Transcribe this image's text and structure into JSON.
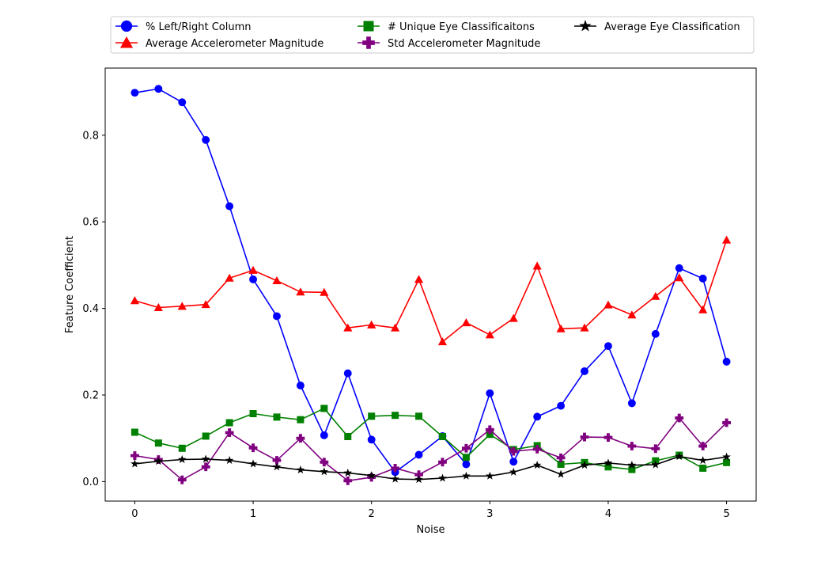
{
  "chart_data": {
    "type": "line",
    "xlabel": "Noise",
    "ylabel": "Feature Coefficient",
    "xlim": [
      -0.25,
      5.25
    ],
    "ylim": [
      -0.045,
      0.955
    ],
    "xticks": [
      0,
      1,
      2,
      3,
      4,
      5
    ],
    "yticks": [
      0.0,
      0.2,
      0.4,
      0.6,
      0.8
    ],
    "x": [
      0.0,
      0.2,
      0.4,
      0.6,
      0.8,
      1.0,
      1.2,
      1.4,
      1.6,
      1.8,
      2.0,
      2.2,
      2.4,
      2.6,
      2.8,
      3.0,
      3.2,
      3.4,
      3.6,
      3.8,
      4.0,
      4.2,
      4.4,
      4.6,
      4.8,
      5.0
    ],
    "legend_position": "above plot, 3 columns",
    "series": [
      {
        "name": "% Left/Right Column",
        "color": "#0000ff",
        "marker": "circle",
        "values": [
          0.898,
          0.907,
          0.876,
          0.789,
          0.636,
          0.467,
          0.382,
          0.222,
          0.107,
          0.25,
          0.097,
          0.022,
          0.062,
          0.105,
          0.04,
          0.204,
          0.046,
          0.15,
          0.175,
          0.255,
          0.313,
          0.181,
          0.341,
          0.493,
          0.469,
          0.277
        ]
      },
      {
        "name": "Average Accelerometer Magnitude",
        "color": "#ff0000",
        "marker": "triangle",
        "values": [
          0.418,
          0.402,
          0.405,
          0.409,
          0.47,
          0.488,
          0.464,
          0.438,
          0.437,
          0.355,
          0.362,
          0.355,
          0.467,
          0.323,
          0.367,
          0.339,
          0.377,
          0.498,
          0.353,
          0.355,
          0.408,
          0.385,
          0.428,
          0.471,
          0.397,
          0.558
        ]
      },
      {
        "name": "# Unique Eye Classificaitons",
        "color": "#008000",
        "marker": "square",
        "values": [
          0.114,
          0.089,
          0.077,
          0.105,
          0.136,
          0.157,
          0.149,
          0.143,
          0.169,
          0.104,
          0.151,
          0.153,
          0.151,
          0.104,
          0.056,
          0.109,
          0.074,
          0.083,
          0.04,
          0.044,
          0.034,
          0.028,
          0.048,
          0.061,
          0.031,
          0.044
        ]
      },
      {
        "name": "Std Accelerometer Magnitude",
        "color": "#800080",
        "marker": "plus",
        "values": [
          0.06,
          0.051,
          0.004,
          0.034,
          0.113,
          0.078,
          0.049,
          0.1,
          0.045,
          0.002,
          0.01,
          0.031,
          0.016,
          0.045,
          0.077,
          0.12,
          0.07,
          0.075,
          0.055,
          0.103,
          0.102,
          0.082,
          0.076,
          0.147,
          0.082,
          0.136
        ]
      },
      {
        "name": "Average Eye Classification",
        "color": "#000000",
        "marker": "star",
        "values": [
          0.041,
          0.047,
          0.051,
          0.052,
          0.049,
          0.041,
          0.034,
          0.027,
          0.023,
          0.02,
          0.014,
          0.006,
          0.005,
          0.008,
          0.013,
          0.013,
          0.022,
          0.038,
          0.017,
          0.038,
          0.043,
          0.038,
          0.039,
          0.058,
          0.049,
          0.057
        ]
      }
    ]
  }
}
